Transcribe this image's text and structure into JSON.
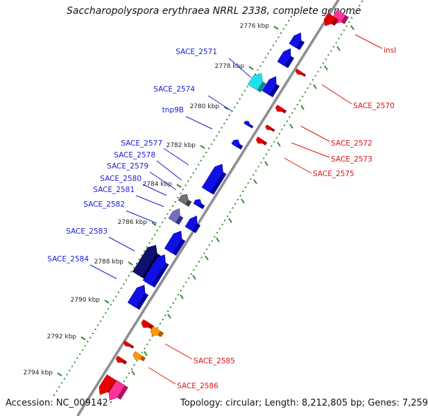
{
  "title": "Saccharopolyspora erythraea NRRL 2338, complete genome",
  "footer": {
    "accession": "Accession: NC_009142",
    "topology": "Topology: circular; Length: 8,212,805 bp; Genes: 7,259"
  },
  "colors": {
    "backbone": "#8c8c8c",
    "forward_gene": "#1010e6",
    "reverse_gene": "#e80000",
    "tick_green": "#2e8b2e",
    "label_blue": "#1a1ad6",
    "label_red": "#e01010"
  },
  "ruler": {
    "ticks": [
      {
        "label": "2776 kbp"
      },
      {
        "label": "2778 kbp"
      },
      {
        "label": "2780 kbp"
      },
      {
        "label": "2782 kbp"
      },
      {
        "label": "2784 kbp"
      },
      {
        "label": "2786 kbp"
      },
      {
        "label": "2788 kbp"
      },
      {
        "label": "2790 kbp"
      },
      {
        "label": "2792 kbp"
      },
      {
        "label": "2794 kbp"
      }
    ]
  },
  "forward_labels": [
    "SACE_2571",
    "SACE_2574",
    "tnp9B",
    "SACE_2577",
    "SACE_2578",
    "SACE_2579",
    "SACE_2580",
    "SACE_2581",
    "SACE_2582",
    "SACE_2583",
    "SACE_2584"
  ],
  "reverse_labels": [
    "insI",
    "SACE_2570",
    "SACE_2572",
    "SACE_2573",
    "SACE_2575",
    "SACE_2585",
    "SACE_2586"
  ]
}
